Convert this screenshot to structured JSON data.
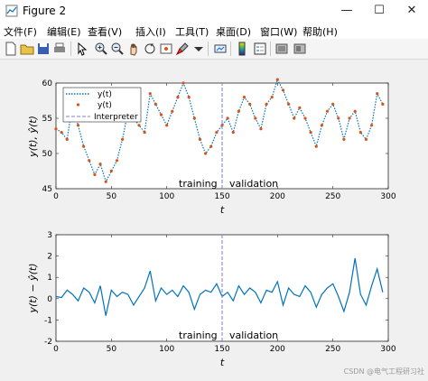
{
  "window": {
    "title": "Figure 2",
    "minimize": "—",
    "maximize": "☐",
    "close": "✕"
  },
  "menu": [
    "文件(F)",
    "编辑(E)",
    "查看(V)",
    "插入(I)",
    "工具(T)",
    "桌面(D)",
    "窗口(W)",
    "帮助(H)"
  ],
  "toolbar_icons": [
    "new-file-icon",
    "open-folder-icon",
    "save-icon",
    "print-icon",
    "pointer-icon",
    "zoom-in-icon",
    "zoom-out-icon",
    "pan-icon",
    "rotate-3d-icon",
    "data-cursor-icon",
    "brush-icon",
    "link-plot-icon",
    "colorbar-icon",
    "legend-icon",
    "hide-plot-tools-icon",
    "show-plot-tools-icon"
  ],
  "chart_data": [
    {
      "type": "line",
      "title": "",
      "xlabel": "t",
      "ylabel": "y(t), ŷ(t)",
      "xlim": [
        0,
        300
      ],
      "ylim": [
        45,
        60
      ],
      "xticks": [
        0,
        50,
        100,
        150,
        200,
        250,
        300
      ],
      "yticks": [
        45,
        50,
        55,
        60
      ],
      "legend": {
        "location": "top-left",
        "entries": [
          "y(t)",
          "y(t)",
          "Interpreter"
        ]
      },
      "vline_x": 150,
      "annotations": [
        "training",
        "validation"
      ],
      "series": [
        {
          "name": "y(t)",
          "style": "dotted",
          "color": "#0072bd",
          "x": [
            0,
            5,
            10,
            15,
            20,
            25,
            30,
            35,
            40,
            45,
            50,
            55,
            60,
            65,
            70,
            75,
            80,
            85,
            90,
            95,
            100,
            105,
            110,
            115,
            120,
            125,
            130,
            135,
            140,
            145,
            150,
            155,
            160,
            165,
            170,
            175,
            180,
            185,
            190,
            195,
            200,
            205,
            210,
            215,
            220,
            225,
            230,
            235,
            240,
            245,
            250,
            255,
            260,
            265,
            270,
            275,
            280,
            285,
            290,
            295
          ],
          "y": [
            53.5,
            53,
            52,
            57,
            54,
            51,
            49,
            47,
            48.5,
            46,
            47.5,
            49,
            52,
            56,
            55,
            54,
            53,
            58.5,
            57,
            55.5,
            54,
            56,
            58,
            60,
            58,
            55,
            52,
            50,
            51,
            53,
            54,
            55,
            53,
            56,
            58,
            57,
            55,
            53.5,
            57,
            58,
            60.5,
            59,
            57,
            55,
            56.5,
            55,
            53,
            51,
            54,
            56,
            57,
            55,
            52,
            55,
            56,
            53,
            52,
            54,
            58.5,
            57
          ]
        },
        {
          "name": "y(t)",
          "style": "markers",
          "color": "#d95319",
          "x": [
            0,
            5,
            10,
            15,
            20,
            25,
            30,
            35,
            40,
            45,
            50,
            55,
            60,
            65,
            70,
            75,
            80,
            85,
            90,
            95,
            100,
            105,
            110,
            115,
            120,
            125,
            130,
            135,
            140,
            145,
            150,
            155,
            160,
            165,
            170,
            175,
            180,
            185,
            190,
            195,
            200,
            205,
            210,
            215,
            220,
            225,
            230,
            235,
            240,
            245,
            250,
            255,
            260,
            265,
            270,
            275,
            280,
            285,
            290,
            295
          ],
          "y": [
            53.5,
            53,
            52,
            57,
            54,
            51,
            49,
            47,
            48.5,
            46,
            47.5,
            49,
            52,
            56,
            55,
            54,
            53,
            58.5,
            57,
            55.5,
            54,
            56,
            58,
            60,
            58,
            55,
            52,
            50,
            51,
            53,
            54,
            55,
            53,
            56,
            58,
            57,
            55,
            53.5,
            57,
            58,
            60.5,
            59,
            57,
            55,
            56.5,
            55,
            53,
            51,
            54,
            56,
            57,
            55,
            52,
            55,
            56,
            53,
            52,
            54,
            58.5,
            57
          ]
        },
        {
          "name": "Interpreter",
          "style": "dashed-vertical",
          "color": "#7b7bdf",
          "x": [
            150,
            150
          ],
          "y": [
            45,
            60
          ]
        }
      ]
    },
    {
      "type": "line",
      "title": "",
      "xlabel": "t",
      "ylabel": "y(t) − ŷ(t)",
      "xlim": [
        0,
        300
      ],
      "ylim": [
        -2,
        3
      ],
      "xticks": [
        0,
        50,
        100,
        150,
        200,
        250,
        300
      ],
      "yticks": [
        -2,
        -1,
        0,
        1,
        2,
        3
      ],
      "vline_x": 150,
      "annotations": [
        "training",
        "validation"
      ],
      "series": [
        {
          "name": "",
          "style": "solid",
          "color": "#0072bd",
          "x": [
            0,
            5,
            10,
            15,
            20,
            25,
            30,
            35,
            40,
            45,
            50,
            55,
            60,
            65,
            70,
            75,
            80,
            85,
            90,
            95,
            100,
            105,
            110,
            115,
            120,
            125,
            130,
            135,
            140,
            145,
            150,
            155,
            160,
            165,
            170,
            175,
            180,
            185,
            190,
            195,
            200,
            205,
            210,
            215,
            220,
            225,
            230,
            235,
            240,
            245,
            250,
            255,
            260,
            265,
            270,
            275,
            280,
            285,
            290,
            295
          ],
          "y": [
            0.1,
            0.05,
            0.4,
            0.2,
            -0.1,
            0.5,
            0.3,
            -0.2,
            0.6,
            -0.8,
            0.4,
            0.1,
            0.3,
            0.2,
            -0.3,
            0.1,
            0.5,
            1.3,
            -0.1,
            0.5,
            0.2,
            0.4,
            0.1,
            0.6,
            0.3,
            -0.5,
            0.2,
            0.4,
            0.3,
            0.7,
            0.1,
            0.3,
            -0.1,
            0.6,
            0.2,
            0.5,
            0.3,
            -0.2,
            0.4,
            0.3,
            0.8,
            -0.3,
            0.5,
            0.2,
            0.1,
            0.6,
            0.3,
            -0.4,
            0.2,
            0.5,
            0.7,
            0.1,
            -0.6,
            0.3,
            1.9,
            0.2,
            -0.3,
            0.6,
            1.4,
            0.3
          ]
        },
        {
          "name": "",
          "style": "dashed-vertical",
          "color": "#7b7bdf",
          "x": [
            150,
            150
          ],
          "y": [
            -2,
            3
          ]
        }
      ]
    }
  ],
  "watermark": "CSDN @电气工程研习社"
}
